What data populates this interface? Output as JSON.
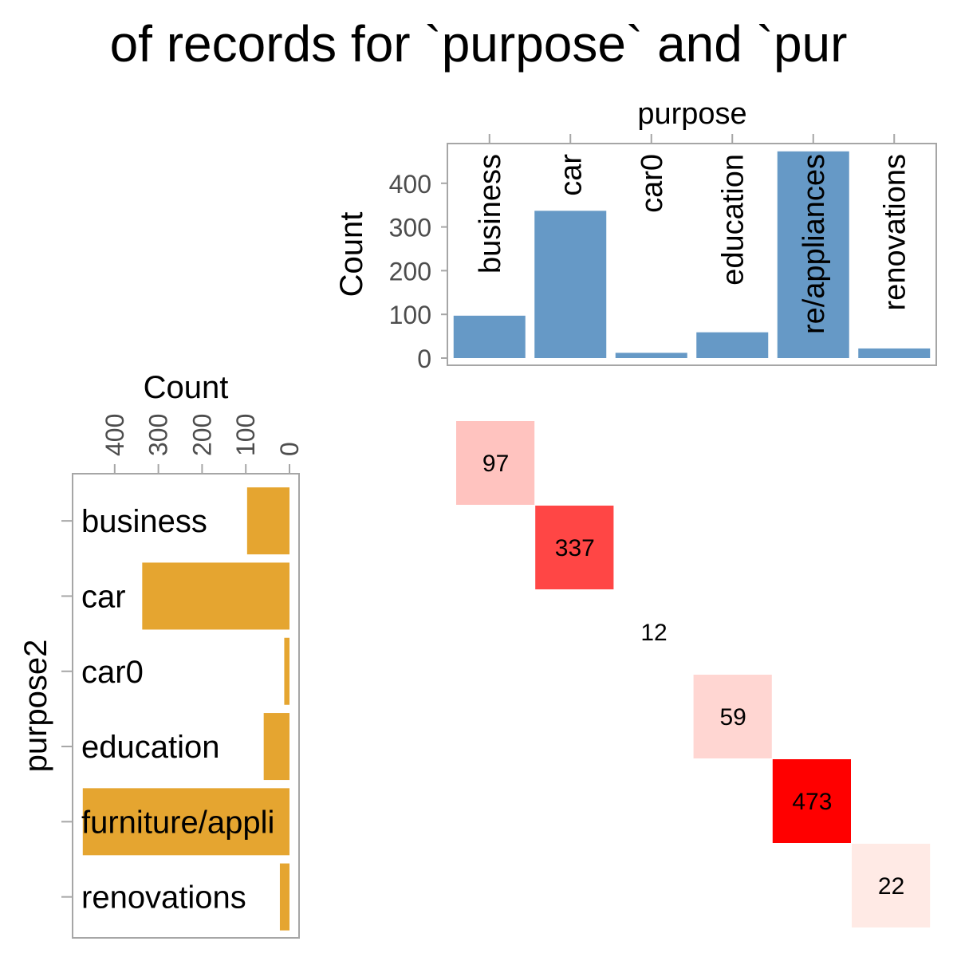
{
  "title": "of records for `purpose` and `pur",
  "colors": {
    "top_bar": "#6699C6",
    "side_bar": "#E5A530",
    "tick_text": "#4D4D4D",
    "frame": "#A6A6A6",
    "heat_low": "#FFF5F0",
    "heat_high": "#FF0000"
  },
  "chart_data": [
    {
      "type": "bar",
      "xlabel": "purpose",
      "ylabel": "Count",
      "categories": [
        "business",
        "car",
        "car0",
        "education",
        "re/appliances",
        "renovations"
      ],
      "values": [
        97,
        337,
        12,
        59,
        473,
        22
      ],
      "ylim": [
        0,
        490
      ],
      "yticks": [
        "0",
        "100",
        "200",
        "300",
        "400"
      ]
    },
    {
      "type": "bar",
      "orientation": "horizontal",
      "xlabel": "Count",
      "ylabel": "purpose2",
      "categories": [
        "business",
        "car",
        "car0",
        "education",
        "furniture/appli",
        "renovations"
      ],
      "values": [
        97,
        337,
        12,
        59,
        473,
        22
      ],
      "xlim": [
        0,
        490
      ],
      "xticks": [
        "0",
        "100",
        "200",
        "300",
        "400"
      ]
    },
    {
      "type": "heatmap",
      "cells": [
        {
          "row": 0,
          "col": 0,
          "value": 97,
          "label": "97"
        },
        {
          "row": 1,
          "col": 1,
          "value": 337,
          "label": "337"
        },
        {
          "row": 2,
          "col": 2,
          "value": 12,
          "label": "12"
        },
        {
          "row": 3,
          "col": 3,
          "value": 59,
          "label": "59"
        },
        {
          "row": 4,
          "col": 4,
          "value": 473,
          "label": "473"
        },
        {
          "row": 5,
          "col": 5,
          "value": 22,
          "label": "22"
        }
      ]
    }
  ]
}
